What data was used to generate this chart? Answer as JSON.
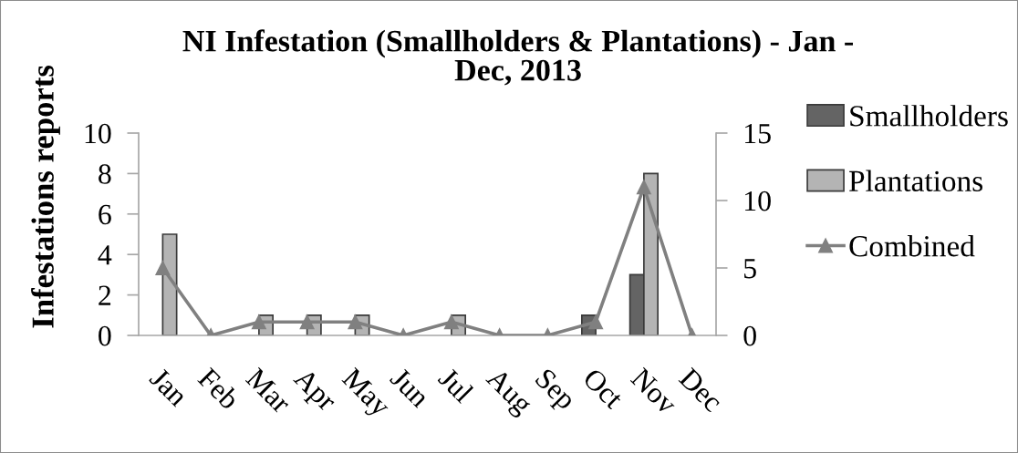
{
  "chart_data": {
    "type": "bar",
    "title": "NI Infestation (Smallholders & Plantations) - Jan -\nDec, 2013",
    "ylabel": "Infestations reports",
    "categories": [
      "Jan",
      "Feb",
      "Mar",
      "Apr",
      "May",
      "Jun",
      "Jul",
      "Aug",
      "Sep",
      "Oct",
      "Nov",
      "Dec"
    ],
    "series": [
      {
        "name": "Smallholders",
        "color": "#646464",
        "values": [
          0,
          0,
          0,
          0,
          0,
          0,
          0,
          0,
          0,
          1,
          3,
          0
        ]
      },
      {
        "name": "Plantations",
        "color": "#b4b4b4",
        "values": [
          5,
          0,
          1,
          1,
          1,
          0,
          1,
          0,
          0,
          0,
          8,
          0
        ]
      },
      {
        "name": "Combined",
        "type": "line",
        "axis": "y2",
        "color": "#808080",
        "marker": "triangle",
        "values": [
          5,
          0,
          1,
          1,
          1,
          0,
          1,
          0,
          0,
          1,
          11,
          0
        ]
      }
    ],
    "ylim": [
      0,
      10
    ],
    "yticks": [
      0,
      2,
      4,
      6,
      8,
      10
    ],
    "y2lim": [
      0,
      15
    ],
    "y2ticks": [
      0,
      5,
      10,
      15
    ],
    "legend": "right",
    "grid": false
  }
}
